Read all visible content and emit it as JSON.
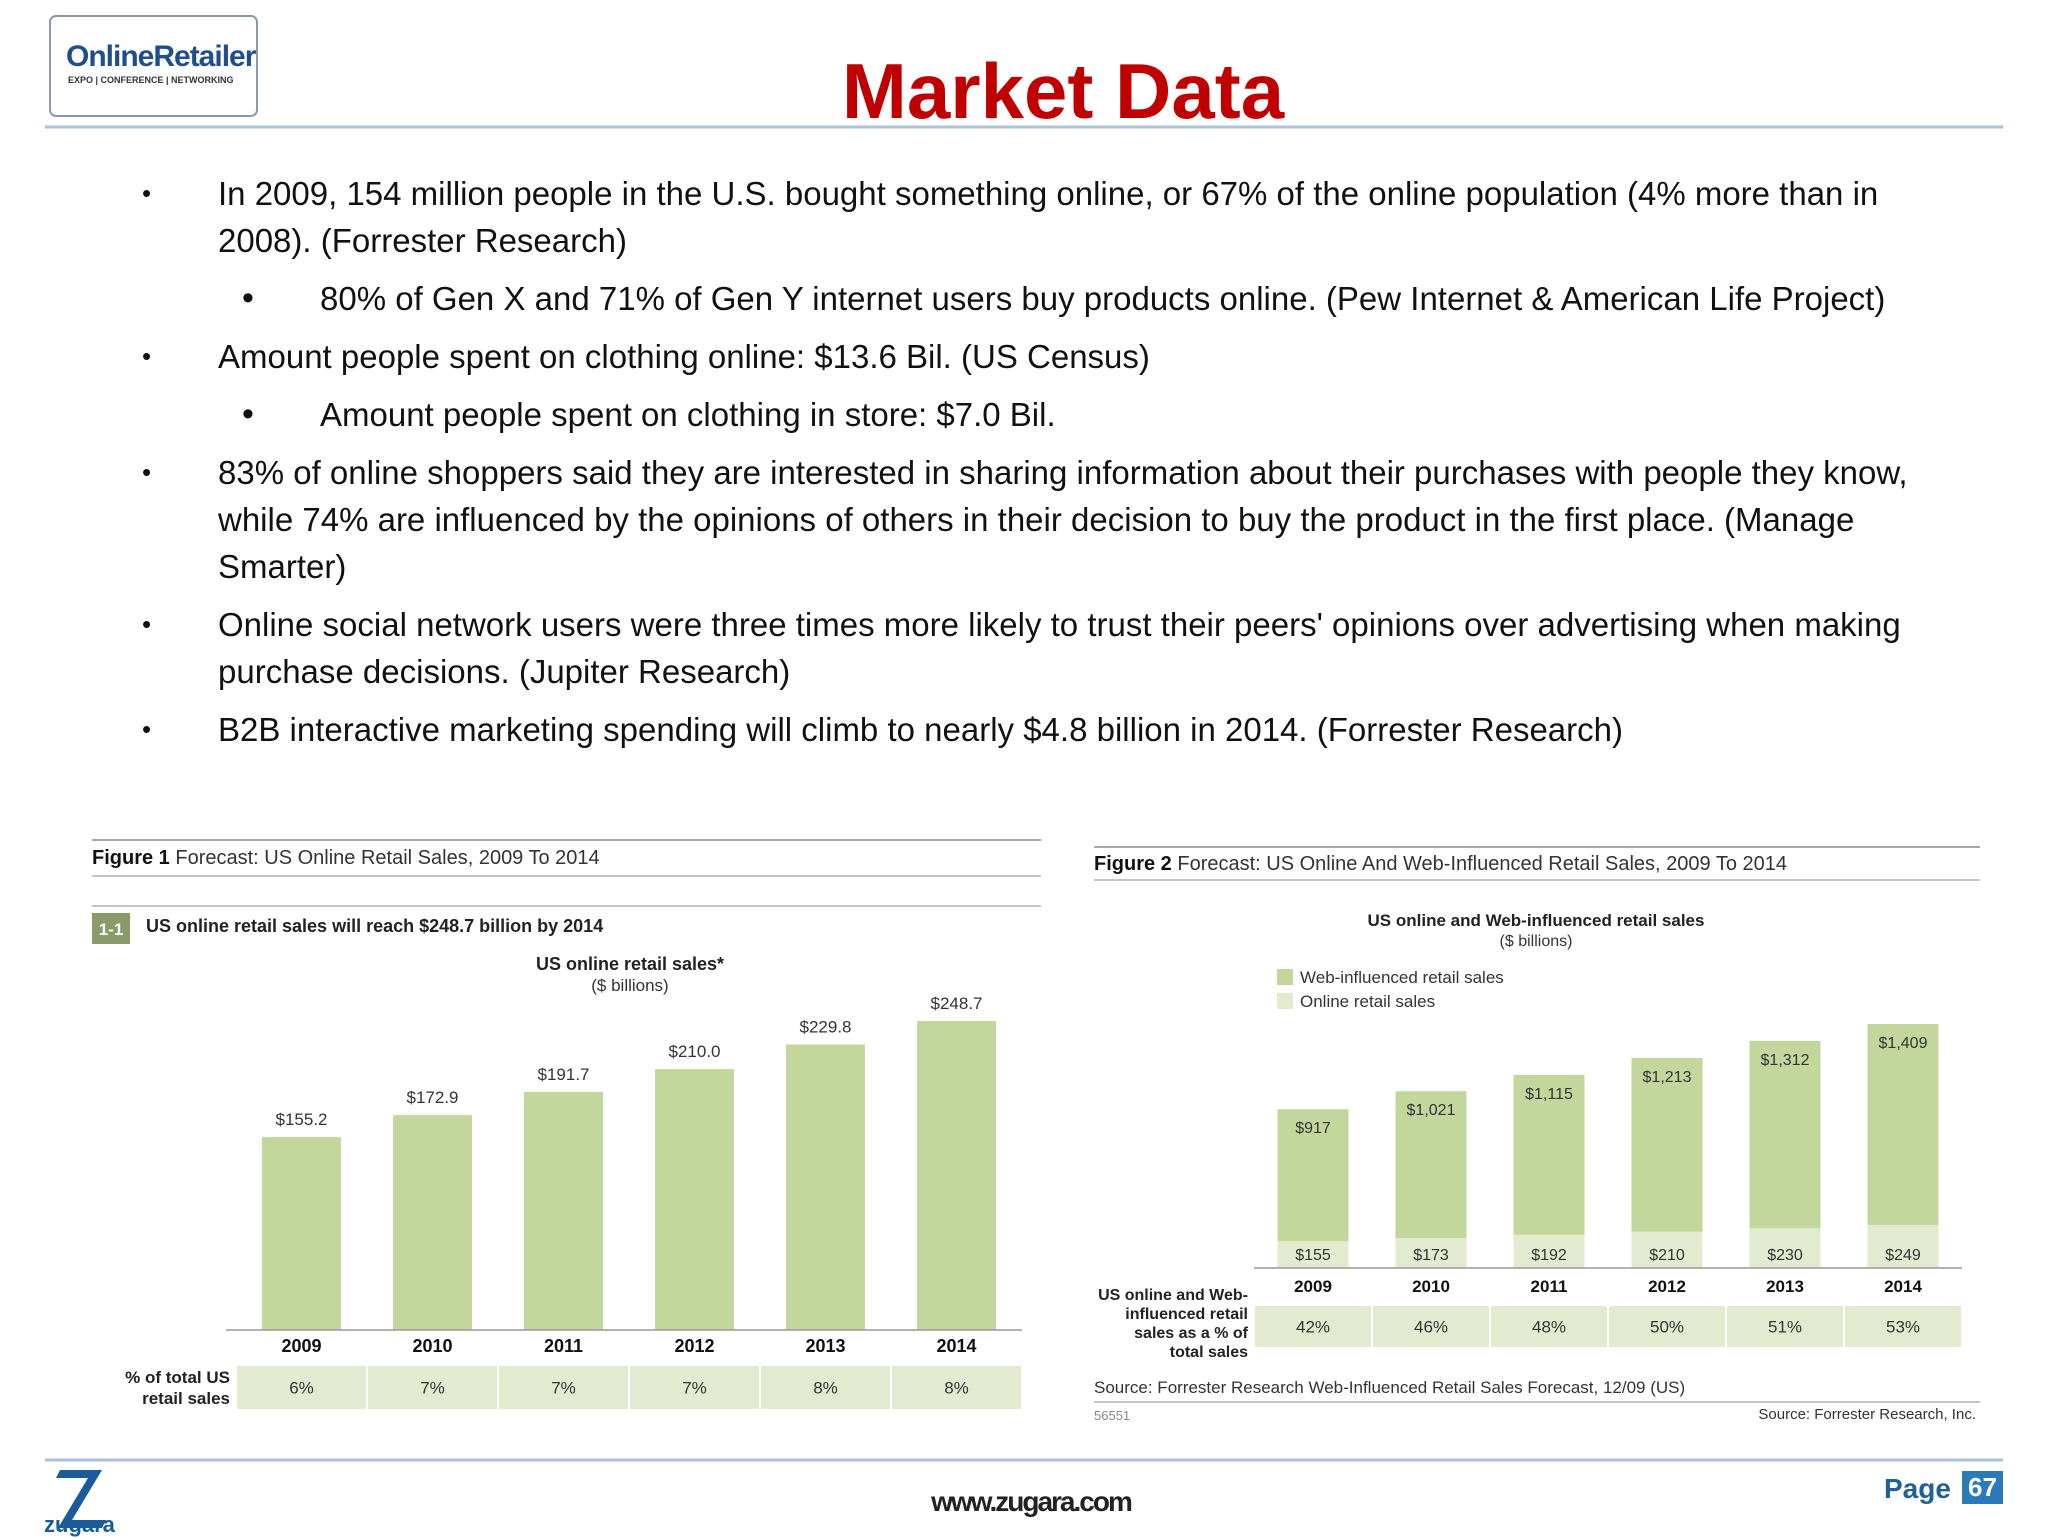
{
  "header": {
    "logo_name": "OnlineRetailer",
    "logo_tagline": "EXPO | CONFERENCE | NETWORKING",
    "title": "Market Data"
  },
  "bullets": [
    {
      "level": 1,
      "text": "In 2009, 154 million people in the U.S. bought something online, or 67% of the online population (4% more than in 2008). (Forrester Research)"
    },
    {
      "level": 2,
      "text": "80% of Gen X and 71% of Gen Y internet users buy products online.  (Pew Internet & American Life Project)"
    },
    {
      "level": 1,
      "text": "Amount people spent on clothing online: $13.6 Bil. (US Census)"
    },
    {
      "level": 2,
      "text": "Amount people spent on clothing in store: $7.0 Bil."
    },
    {
      "level": 1,
      "text": "83% of online shoppers said they are interested in sharing information about their purchases with people they know, while 74% are influenced by the opinions of others in their decision to buy the product in the first place. (Manage Smarter)"
    },
    {
      "level": 1,
      "text": "Online social network users were three times more likely to trust their peers' opinions over advertising when making purchase decisions. (Jupiter Research)"
    },
    {
      "level": 1,
      "text": "B2B interactive marketing spending will climb to nearly $4.8 billion in 2014. (Forrester Research)"
    }
  ],
  "chart_data": [
    {
      "type": "bar",
      "figure_label": "Figure 1",
      "caption": "Forecast: US Online Retail Sales, 2009 To 2014",
      "banner_label": "1-1",
      "banner": "US online retail sales will reach $248.7 billion by 2014",
      "title": "US online retail sales*",
      "subtitle": "($ billions)",
      "categories": [
        "2009",
        "2010",
        "2011",
        "2012",
        "2013",
        "2014"
      ],
      "values": [
        155.2,
        172.9,
        191.7,
        210.0,
        229.8,
        248.7
      ],
      "value_labels": [
        "$155.2",
        "$172.9",
        "$191.7",
        "$210.0",
        "$229.8",
        "$248.7"
      ],
      "color": "#c3d69b",
      "row_label": "% of total US retail sales",
      "row_values": [
        6,
        7,
        7,
        7,
        8,
        8
      ],
      "row_labels": [
        "6%",
        "7%",
        "7%",
        "7%",
        "8%",
        "8%"
      ]
    },
    {
      "type": "overlaid_bar",
      "figure_label": "Figure 2",
      "caption": "Forecast: US Online And Web-Influenced Retail Sales, 2009 To 2014",
      "title": "US online and Web-influenced retail sales",
      "subtitle": "($ billions)",
      "categories": [
        "2009",
        "2010",
        "2011",
        "2012",
        "2013",
        "2014"
      ],
      "series": [
        {
          "name": "Web-influenced retail sales",
          "color": "#c3d69b",
          "values": [
            917,
            1021,
            1115,
            1213,
            1312,
            1409
          ],
          "value_labels": [
            "$917",
            "$1,021",
            "$1,115",
            "$1,213",
            "$1,312",
            "$1,409"
          ]
        },
        {
          "name": "Online retail sales",
          "color": "#e2ebcf",
          "values": [
            155,
            173,
            192,
            210,
            230,
            249
          ],
          "value_labels": [
            "$155",
            "$173",
            "$192",
            "$210",
            "$230",
            "$249"
          ]
        }
      ],
      "row_label": "US online and Web-influenced retail sales as a % of total sales",
      "row_values": [
        42,
        46,
        48,
        50,
        51,
        53
      ],
      "row_labels": [
        "42%",
        "46%",
        "48%",
        "50%",
        "51%",
        "53%"
      ],
      "source": "Source: Forrester Research Web-Influenced Retail Sales Forecast, 12/09 (US)",
      "id": "56551",
      "credit": "Source: Forrester Research, Inc."
    }
  ],
  "footer": {
    "logo": "zugara",
    "url": "www.zugara.com",
    "page_label": "Page",
    "page_number": "67"
  }
}
